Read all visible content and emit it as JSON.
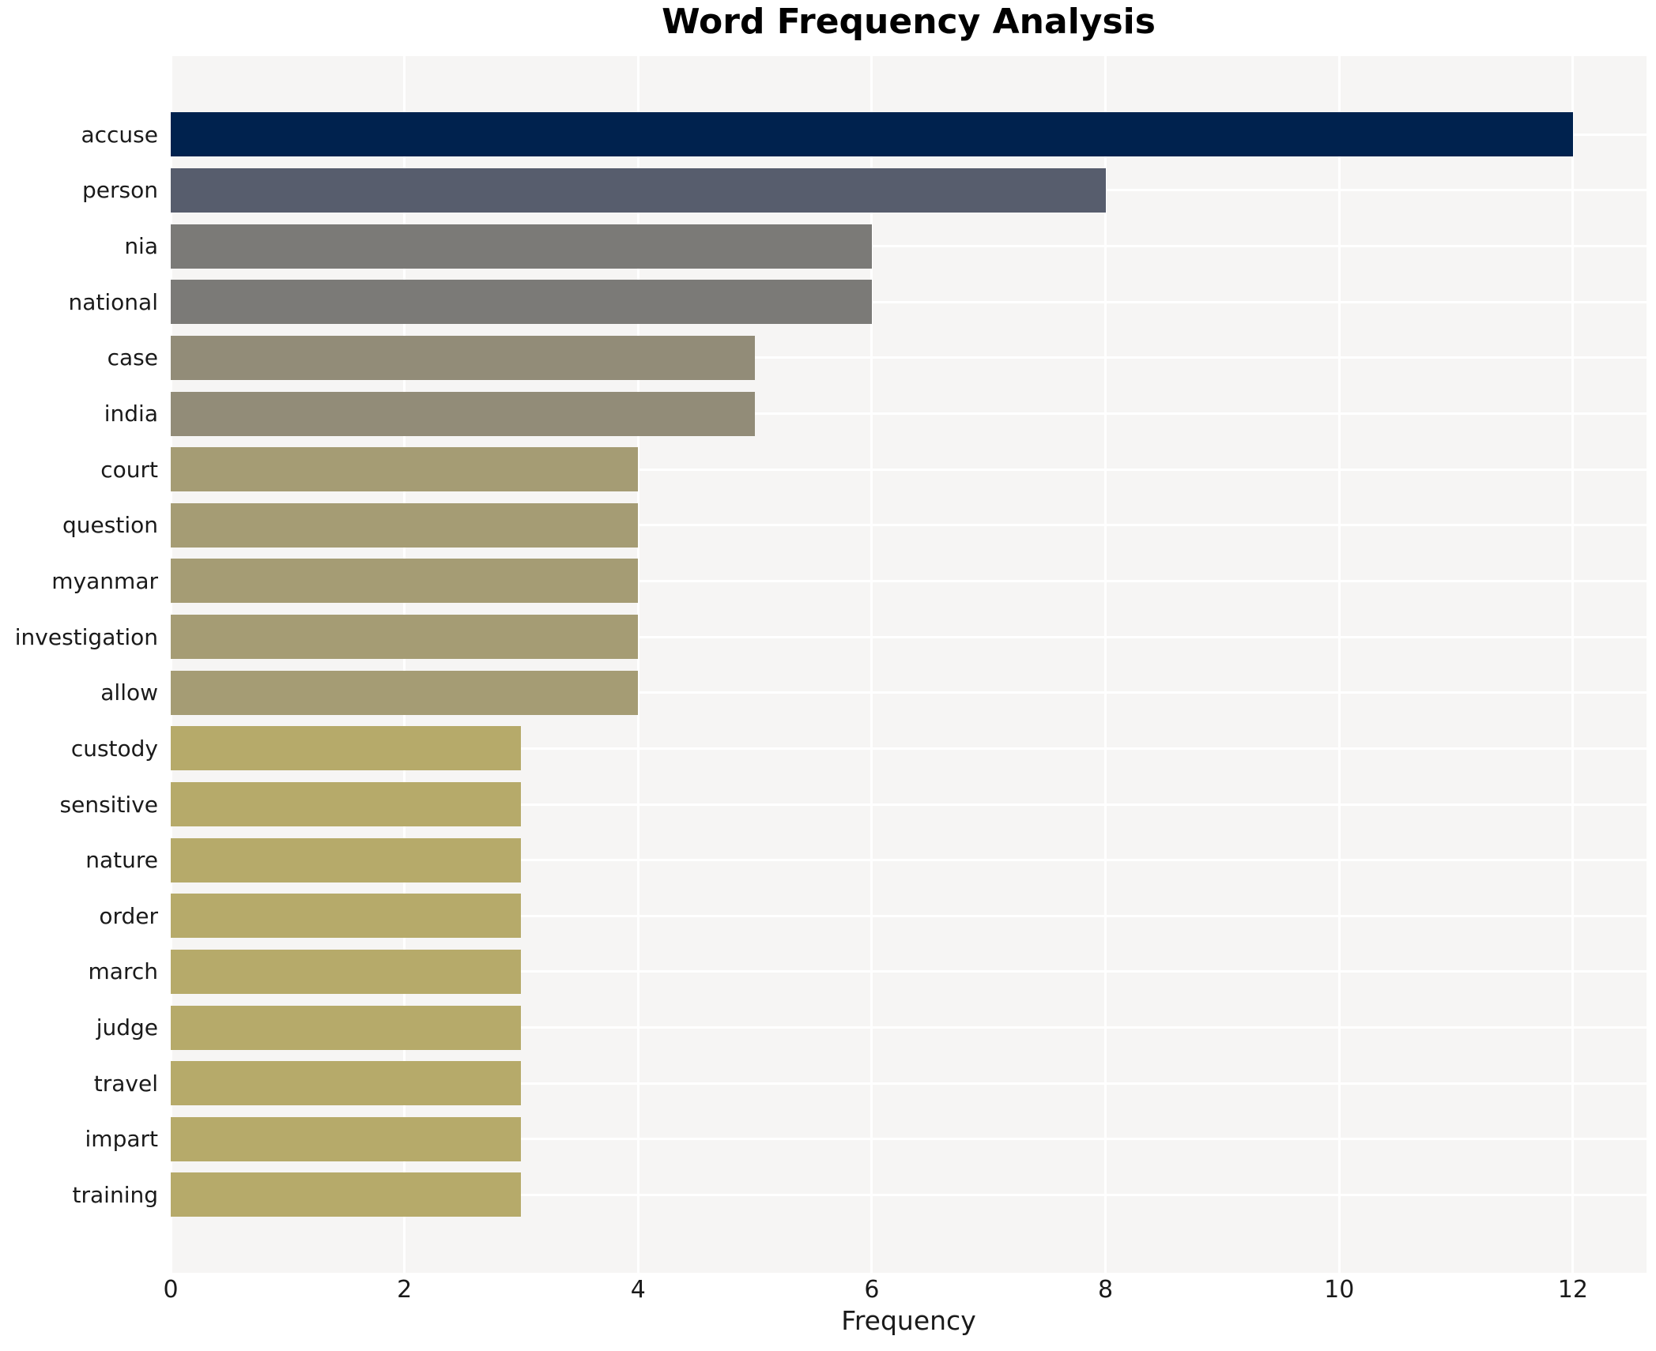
{
  "chart": {
    "title": "Word Frequency Analysis",
    "xlabel": "Frequency"
  },
  "chart_data": {
    "type": "bar",
    "orientation": "horizontal",
    "title": "Word Frequency Analysis",
    "xlabel": "Frequency",
    "ylabel": "",
    "categories": [
      "accuse",
      "person",
      "nia",
      "national",
      "case",
      "india",
      "court",
      "question",
      "myanmar",
      "investigation",
      "allow",
      "custody",
      "sensitive",
      "nature",
      "order",
      "march",
      "judge",
      "travel",
      "impart",
      "training"
    ],
    "values": [
      12,
      8,
      6,
      6,
      5,
      5,
      4,
      4,
      4,
      4,
      4,
      3,
      3,
      3,
      3,
      3,
      3,
      3,
      3,
      3
    ],
    "bar_colors": [
      "#00224e",
      "#575d6d",
      "#7b7a77",
      "#7b7a77",
      "#928c78",
      "#928c78",
      "#a59c74",
      "#a59c74",
      "#a59c74",
      "#a59c74",
      "#a59c74",
      "#b6aa6a",
      "#b6aa6a",
      "#b6aa6a",
      "#b6aa6a",
      "#b6aa6a",
      "#b6aa6a",
      "#b6aa6a",
      "#b6aa6a",
      "#b6aa6a"
    ],
    "xticks": [
      0,
      2,
      4,
      6,
      8,
      10,
      12
    ],
    "xlim": [
      0,
      12.63
    ],
    "grid": true,
    "legend_position": "none",
    "plot_background": "#f6f5f4",
    "gridline_color": "#ffffff",
    "text_color": "#1a1a1a"
  }
}
